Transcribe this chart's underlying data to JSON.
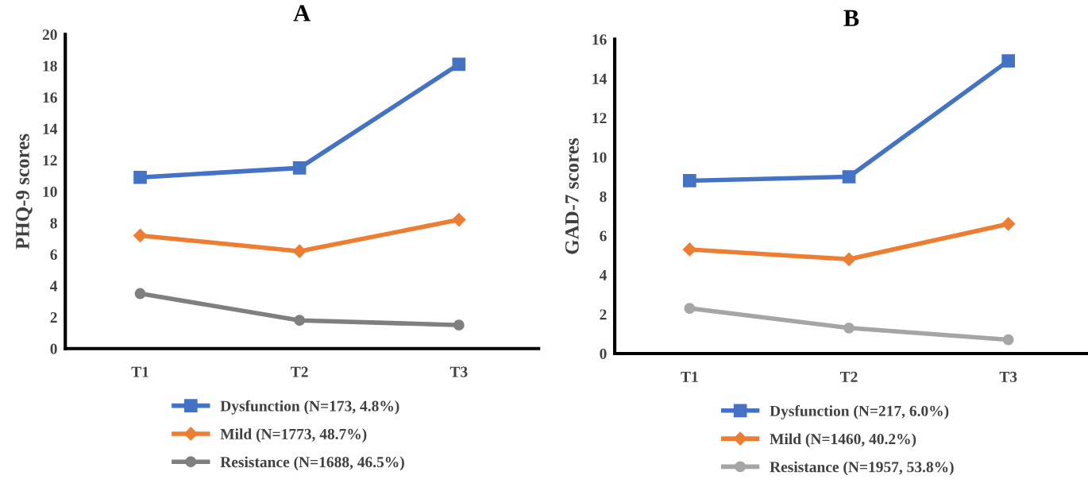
{
  "chart_data": [
    {
      "type": "line",
      "title": "A",
      "ylabel": "PHQ-9 scores",
      "categories": [
        "T1",
        "T2",
        "T3"
      ],
      "ylim": [
        0,
        20
      ],
      "yticks": [
        0,
        2,
        4,
        6,
        8,
        10,
        12,
        14,
        16,
        18,
        20
      ],
      "grid": false,
      "legend": "bottom",
      "series": [
        {
          "name": "Dysfunction (N=173, 4.8%)",
          "color": "#4472c4",
          "marker": "square",
          "values": [
            10.9,
            11.5,
            18.1
          ]
        },
        {
          "name": "Mild (N=1773, 48.7%)",
          "color": "#ed7d31",
          "marker": "diamond",
          "values": [
            7.2,
            6.2,
            8.2
          ]
        },
        {
          "name": "Resistance (N=1688, 46.5%)",
          "color": "#7f7f7f",
          "marker": "circle",
          "values": [
            3.5,
            1.8,
            1.5
          ]
        }
      ]
    },
    {
      "type": "line",
      "title": "B",
      "ylabel": "GAD-7 scores",
      "categories": [
        "T1",
        "T2",
        "T3"
      ],
      "ylim": [
        0,
        16
      ],
      "yticks": [
        0,
        2,
        4,
        6,
        8,
        10,
        12,
        14,
        16
      ],
      "grid": false,
      "legend": "bottom",
      "series": [
        {
          "name": "Dysfunction (N=217, 6.0%)",
          "color": "#4472c4",
          "marker": "square",
          "values": [
            8.8,
            9.0,
            14.9
          ]
        },
        {
          "name": "Mild (N=1460, 40.2%)",
          "color": "#ed7d31",
          "marker": "diamond",
          "values": [
            5.3,
            4.8,
            6.6
          ]
        },
        {
          "name": "Resistance (N=1957, 53.8%)",
          "color": "#a5a5a5",
          "marker": "circle",
          "values": [
            2.3,
            1.3,
            0.7
          ]
        }
      ]
    }
  ]
}
